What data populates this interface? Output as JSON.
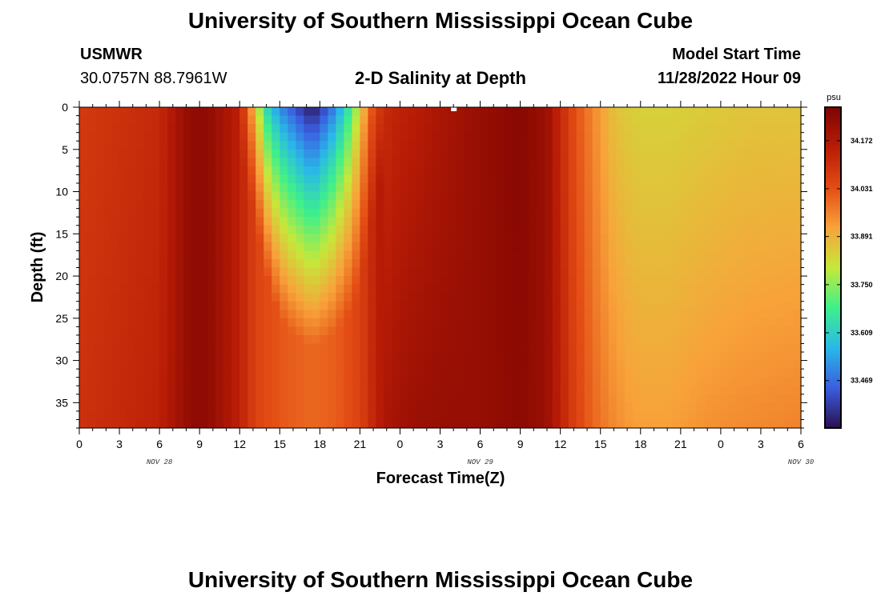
{
  "header": {
    "title": "University of Southern Mississippi Ocean Cube",
    "station": "USMWR",
    "coords": "30.0757N  88.7961W",
    "subtitle": "2-D Salinity at Depth",
    "model_start_label": "Model Start Time",
    "model_start_value": "11/28/2022 Hour 09"
  },
  "footer": {
    "title": "University of Southern Mississippi Ocean Cube"
  },
  "colors": {
    "scale": [
      "#2a0f4f",
      "#3a5ee0",
      "#2ab8e8",
      "#3ef08a",
      "#c6e83a",
      "#f8a23a",
      "#e34c14",
      "#b81c06",
      "#7d0402"
    ]
  },
  "chart_data": {
    "type": "heatmap",
    "title": "2-D Salinity at Depth",
    "xlabel": "Forecast Time(Z)",
    "ylabel": "Depth (ft)",
    "x_tick_labels": [
      "0",
      "3",
      "6",
      "9",
      "12",
      "15",
      "18",
      "21",
      "0",
      "3",
      "6",
      "9",
      "12",
      "15",
      "18",
      "21",
      "0",
      "3",
      "6"
    ],
    "date_labels": [
      {
        "text": "NOV 28",
        "at_hour_index": 6
      },
      {
        "text": "NOV 29",
        "at_hour_index": 30
      },
      {
        "text": "NOV 30",
        "at_hour_index": 54
      }
    ],
    "y_tick_labels": [
      "0",
      "5",
      "10",
      "15",
      "20",
      "25",
      "30",
      "35"
    ],
    "ylim": [
      0,
      38
    ],
    "xlim_hours": [
      0,
      54
    ],
    "colorbar": {
      "unit": "psu",
      "range": [
        33.33,
        34.27
      ],
      "tick_labels": [
        "34.172",
        "34.031",
        "33.891",
        "33.750",
        "33.609",
        "33.469"
      ],
      "tick_values": [
        34.172,
        34.031,
        33.891,
        33.75,
        33.609,
        33.469
      ]
    },
    "profile_hours": [
      0,
      3,
      6,
      8,
      9,
      10,
      12,
      12.6,
      13.2,
      14,
      14.6,
      15,
      16,
      17,
      17.5,
      18,
      19,
      20,
      21,
      21.6,
      22.2,
      23,
      24,
      25,
      27,
      30,
      33,
      35,
      36,
      37,
      38,
      39,
      40,
      41,
      42,
      44,
      47,
      50,
      54
    ],
    "surface_salinity": [
      34.08,
      34.1,
      34.12,
      34.22,
      34.24,
      34.22,
      34.14,
      34.0,
      33.85,
      33.62,
      33.55,
      33.5,
      33.43,
      33.36,
      33.34,
      33.38,
      33.48,
      33.62,
      33.82,
      33.98,
      34.06,
      34.12,
      34.14,
      34.15,
      34.18,
      34.22,
      34.25,
      34.21,
      34.12,
      34.04,
      33.98,
      33.92,
      33.87,
      33.85,
      33.84,
      33.84,
      33.85,
      33.86,
      33.86
    ],
    "bottom_salinity": [
      34.1,
      34.12,
      34.14,
      34.22,
      34.24,
      34.22,
      34.14,
      34.1,
      34.06,
      34.04,
      34.03,
      34.02,
      34.01,
      34.0,
      34.0,
      34.0,
      34.01,
      34.03,
      34.06,
      34.1,
      34.14,
      34.18,
      34.2,
      34.21,
      34.22,
      34.22,
      34.24,
      34.21,
      34.14,
      34.07,
      34.02,
      33.98,
      33.95,
      33.93,
      33.92,
      33.92,
      33.94,
      33.95,
      33.96
    ],
    "fresh_layer_depth": [
      0,
      0,
      0,
      0,
      0,
      0,
      0,
      3,
      8,
      14,
      17,
      19,
      21,
      22,
      22.5,
      22,
      21,
      19,
      16,
      10,
      5,
      0,
      0,
      0,
      0,
      0,
      0,
      0,
      0,
      0,
      0,
      0,
      0,
      0,
      0,
      0,
      0,
      0,
      0
    ]
  }
}
